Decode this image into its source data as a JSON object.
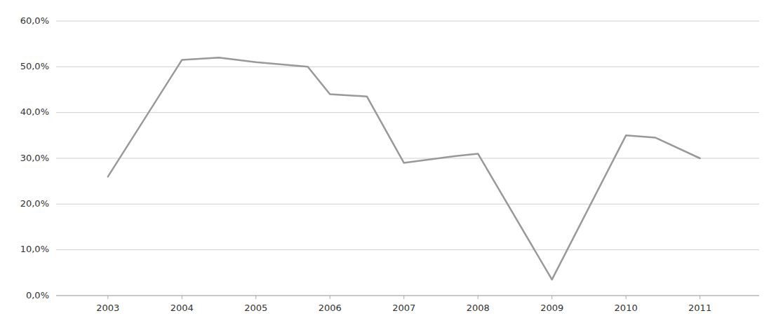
{
  "chart_data": {
    "type": "line",
    "x": [
      2003,
      2004,
      2004.5,
      2005,
      2005.7,
      2006,
      2006.5,
      2007,
      2007.7,
      2008,
      2009,
      2010,
      2010.4,
      2011
    ],
    "values": [
      0.26,
      0.515,
      0.52,
      0.51,
      0.5,
      0.44,
      0.435,
      0.29,
      0.305,
      0.31,
      0.035,
      0.35,
      0.345,
      0.3
    ],
    "color": "#999999",
    "xlim": [
      2002.3,
      2011.8
    ],
    "xticks": [
      2003,
      2004,
      2005,
      2006,
      2007,
      2008,
      2009,
      2010,
      2011
    ],
    "ylim": [
      0,
      0.6
    ],
    "yticks": [
      {
        "value": 0.0,
        "label": "0,0%"
      },
      {
        "value": 0.1,
        "label": "10,0%"
      },
      {
        "value": 0.2,
        "label": "20,0%"
      },
      {
        "value": 0.3,
        "label": "30,0%"
      },
      {
        "value": 0.4,
        "label": "40,0%"
      },
      {
        "value": 0.5,
        "label": "50,0%"
      },
      {
        "value": 0.6,
        "label": "60,0%"
      }
    ],
    "grid": "y"
  }
}
